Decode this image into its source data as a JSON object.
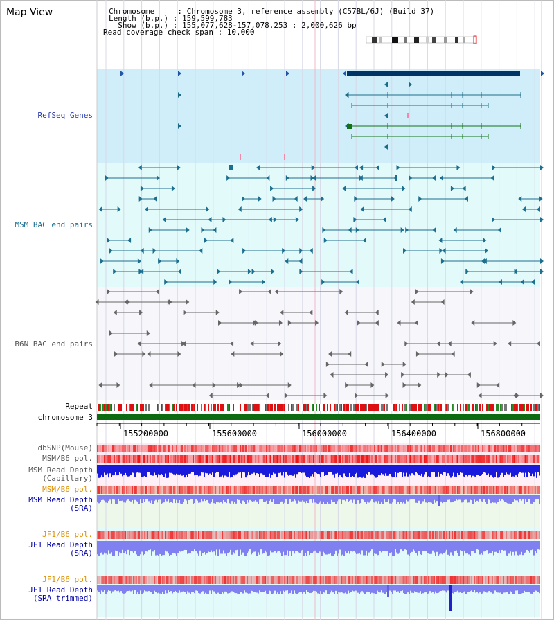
{
  "title": "Map View",
  "header": {
    "chrom_label": "Chromosome     : Chromosome 3, reference assembly (C57BL/6J) (Build 37)",
    "length_label": "Length (b.p.) : 159,599,783",
    "show_label": "  Show (b.p.) : 155,077,628-157,078,253 : 2,000,626 bp",
    "coverage_label": "Read coverage check span : 10,000"
  },
  "tracks": {
    "refseq": "RefSeq Genes",
    "msm_bac": "MSM BAC end pairs",
    "b6n_bac": "B6N BAC end pairs",
    "repeat": "Repeat",
    "chromosome": "chromosome 3",
    "dbsnp": "dbSNP(Mouse)",
    "msm_pol": "MSM/B6 pol.",
    "msm_depth_cap_1": "MSM Read Depth",
    "msm_depth_cap_2": "(Capillary)",
    "msm_pol_2": "MSM/B6 pol.",
    "msm_depth_sra_1": "MSM Read Depth",
    "msm_depth_sra_2": "(SRA)",
    "jf1_pol": "JF1/B6 pol.",
    "jf1_depth_1": "JF1 Read Depth",
    "jf1_depth_2": "(SRA)",
    "jf1_pol_2": "JF1/B6 pol.",
    "jf1_trim_1": "JF1 Read Depth",
    "jf1_trim_2": "(SRA trimmed)"
  },
  "axis": {
    "ticks": [
      "155200000",
      "155600000",
      "156000000",
      "156400000",
      "156800000"
    ]
  },
  "colors": {
    "refseq_bg": "#cfeefa",
    "msm_bg": "#e2fafa",
    "b6n_bg": "#f6f6fb",
    "gene_dark": "#003366",
    "gene_teal": "#1b6d87",
    "gene_green": "#157115",
    "bac_teal": "#1d6f8f",
    "bac_gray": "#666666",
    "repeat_red": "#dd1111",
    "chrom_green": "#0c6b10",
    "depth_blue": "#1a1adc",
    "depth_light": "#8080f0"
  }
}
